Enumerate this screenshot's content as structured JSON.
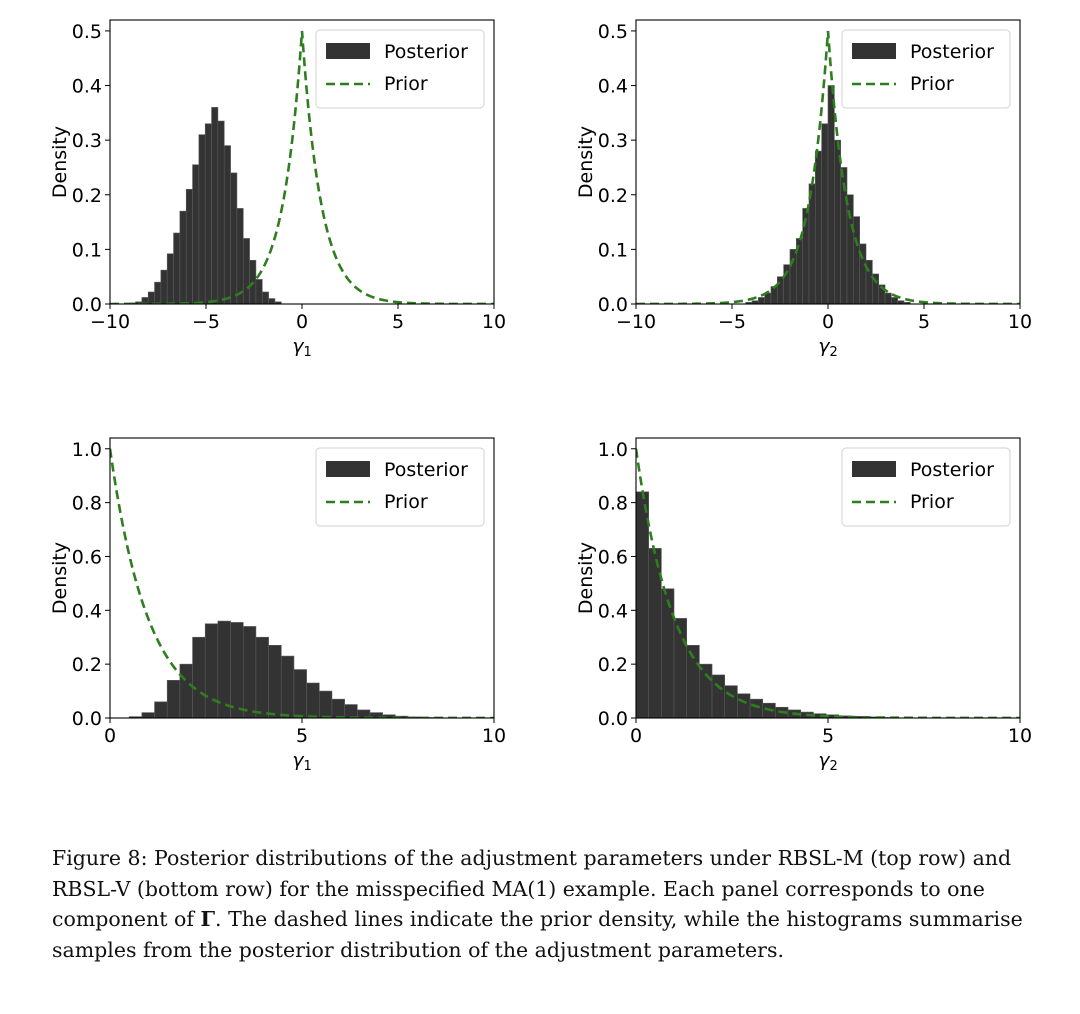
{
  "chart_data": [
    {
      "type": "bar",
      "panel": "top-left",
      "xlabel": "γ1",
      "ylabel": "Density",
      "xlim": [
        -10,
        10
      ],
      "ylim": [
        0,
        0.52
      ],
      "xticks": [
        -10,
        -5,
        0,
        5,
        10
      ],
      "xtick_labels": [
        "−10",
        "−5",
        "0",
        "5",
        "10"
      ],
      "yticks": [
        0,
        0.1,
        0.2,
        0.3,
        0.4,
        0.5
      ],
      "ytick_labels": [
        "0.0",
        "0.1",
        "0.2",
        "0.3",
        "0.4",
        "0.5"
      ],
      "legend": {
        "placement": "top-right",
        "entries": [
          "Posterior",
          "Prior"
        ]
      },
      "series": [
        {
          "name": "Posterior",
          "kind": "histogram",
          "bin_width": 0.33,
          "bin_starts": [
            -9.0,
            -8.67,
            -8.34,
            -8.01,
            -7.68,
            -7.35,
            -7.02,
            -6.69,
            -6.36,
            -6.03,
            -5.7,
            -5.37,
            -5.04,
            -4.71,
            -4.38,
            -4.05,
            -3.72,
            -3.39,
            -3.06,
            -2.73,
            -2.4,
            -2.07,
            -1.74,
            -1.41
          ],
          "values": [
            0.002,
            0.004,
            0.012,
            0.022,
            0.04,
            0.062,
            0.092,
            0.13,
            0.17,
            0.21,
            0.255,
            0.31,
            0.33,
            0.36,
            0.335,
            0.29,
            0.24,
            0.175,
            0.12,
            0.08,
            0.045,
            0.022,
            0.01,
            0.004
          ]
        },
        {
          "name": "Prior",
          "kind": "laplace",
          "location": 0,
          "scale": 1,
          "peak": 0.5
        }
      ]
    },
    {
      "type": "bar",
      "panel": "top-right",
      "xlabel": "γ2",
      "ylabel": "Density",
      "xlim": [
        -10,
        10
      ],
      "ylim": [
        0,
        0.52
      ],
      "xticks": [
        -10,
        -5,
        0,
        5,
        10
      ],
      "xtick_labels": [
        "−10",
        "−5",
        "0",
        "5",
        "10"
      ],
      "yticks": [
        0,
        0.1,
        0.2,
        0.3,
        0.4,
        0.5
      ],
      "ytick_labels": [
        "0.0",
        "0.1",
        "0.2",
        "0.3",
        "0.4",
        "0.5"
      ],
      "legend": {
        "placement": "top-right",
        "entries": [
          "Posterior",
          "Prior"
        ]
      },
      "series": [
        {
          "name": "Posterior",
          "kind": "histogram",
          "bin_width": 0.33,
          "bin_starts": [
            -4.29,
            -3.96,
            -3.63,
            -3.3,
            -2.97,
            -2.64,
            -2.31,
            -1.98,
            -1.65,
            -1.32,
            -0.99,
            -0.66,
            -0.33,
            0.0,
            0.33,
            0.66,
            0.99,
            1.32,
            1.65,
            1.98,
            2.31,
            2.64,
            2.97,
            3.3,
            3.63,
            3.96
          ],
          "values": [
            0.003,
            0.006,
            0.012,
            0.02,
            0.032,
            0.05,
            0.072,
            0.1,
            0.12,
            0.175,
            0.22,
            0.28,
            0.33,
            0.4,
            0.3,
            0.25,
            0.2,
            0.16,
            0.11,
            0.08,
            0.055,
            0.035,
            0.02,
            0.012,
            0.006,
            0.003
          ]
        },
        {
          "name": "Prior",
          "kind": "laplace",
          "location": 0,
          "scale": 1,
          "peak": 0.5
        }
      ]
    },
    {
      "type": "bar",
      "panel": "bottom-left",
      "xlabel": "γ1",
      "ylabel": "Density",
      "xlim": [
        0,
        10
      ],
      "ylim": [
        0,
        1.04
      ],
      "xticks": [
        0,
        5,
        10
      ],
      "xtick_labels": [
        "0",
        "5",
        "10"
      ],
      "yticks": [
        0,
        0.2,
        0.4,
        0.6,
        0.8,
        1.0
      ],
      "ytick_labels": [
        "0.0",
        "0.2",
        "0.4",
        "0.6",
        "0.8",
        "1.0"
      ],
      "legend": {
        "placement": "top-right",
        "entries": [
          "Posterior",
          "Prior"
        ]
      },
      "series": [
        {
          "name": "Posterior",
          "kind": "histogram",
          "bin_width": 0.33,
          "bin_starts": [
            0.5,
            0.83,
            1.16,
            1.49,
            1.82,
            2.15,
            2.48,
            2.81,
            3.14,
            3.47,
            3.8,
            4.13,
            4.46,
            4.79,
            5.12,
            5.45,
            5.78,
            6.11,
            6.44,
            6.77,
            7.1,
            7.43,
            7.76,
            8.09
          ],
          "values": [
            0.005,
            0.02,
            0.06,
            0.14,
            0.2,
            0.3,
            0.35,
            0.36,
            0.355,
            0.34,
            0.3,
            0.27,
            0.23,
            0.18,
            0.13,
            0.1,
            0.07,
            0.05,
            0.03,
            0.02,
            0.012,
            0.007,
            0.004,
            0.002
          ]
        },
        {
          "name": "Prior",
          "kind": "exponential",
          "rate": 1
        }
      ]
    },
    {
      "type": "bar",
      "panel": "bottom-right",
      "xlabel": "γ2",
      "ylabel": "Density",
      "xlim": [
        0,
        10
      ],
      "ylim": [
        0,
        1.04
      ],
      "xticks": [
        0,
        5,
        10
      ],
      "xtick_labels": [
        "0",
        "5",
        "10"
      ],
      "yticks": [
        0,
        0.2,
        0.4,
        0.6,
        0.8,
        1.0
      ],
      "ytick_labels": [
        "0.0",
        "0.2",
        "0.4",
        "0.6",
        "0.8",
        "1.0"
      ],
      "legend": {
        "placement": "top-right",
        "entries": [
          "Posterior",
          "Prior"
        ]
      },
      "series": [
        {
          "name": "Posterior",
          "kind": "histogram",
          "bin_width": 0.33,
          "bin_starts": [
            0.0,
            0.33,
            0.66,
            0.99,
            1.32,
            1.65,
            1.98,
            2.31,
            2.64,
            2.97,
            3.3,
            3.63,
            3.96,
            4.29,
            4.62,
            4.95,
            5.28,
            5.61,
            5.94,
            6.27
          ],
          "values": [
            0.84,
            0.63,
            0.48,
            0.37,
            0.27,
            0.2,
            0.16,
            0.12,
            0.09,
            0.07,
            0.055,
            0.04,
            0.03,
            0.022,
            0.016,
            0.012,
            0.008,
            0.006,
            0.004,
            0.002
          ]
        },
        {
          "name": "Prior",
          "kind": "exponential",
          "rate": 1
        }
      ]
    }
  ],
  "colors": {
    "posterior": "#333333",
    "prior": "#2e7d1f",
    "axis": "#000000"
  },
  "caption": {
    "label": "Figure 8: ",
    "text_before": "Posterior distributions of the adjustment parameters under RBSL-M (top row) and RBSL-V (bottom row) for the misspecified MA(1) example. Each panel corresponds to one component of ",
    "symbol": "Γ",
    "text_after": ". The dashed lines indicate the prior density, while the histograms summarise samples from the posterior distribution of the adjustment parameters."
  }
}
